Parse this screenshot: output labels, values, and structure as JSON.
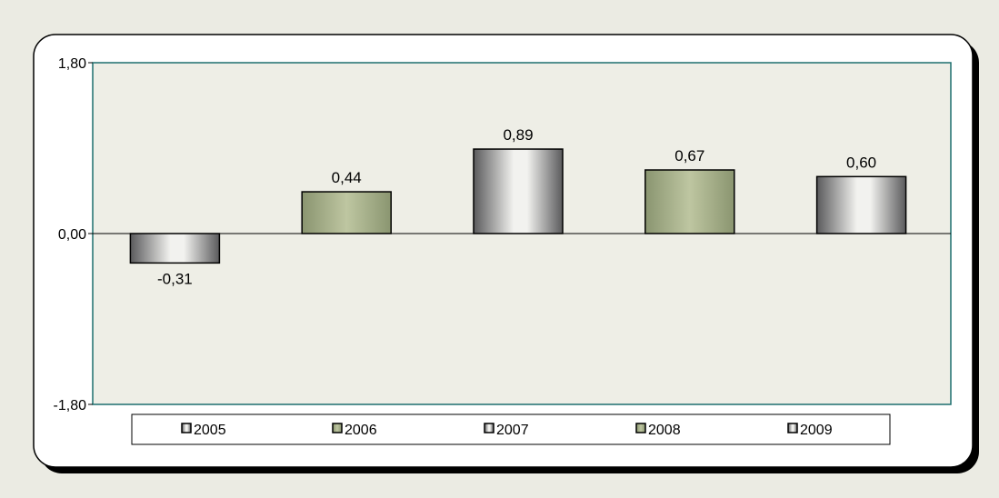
{
  "chart_data": {
    "type": "bar",
    "categories": [
      "2005",
      "2006",
      "2007",
      "2008",
      "2009"
    ],
    "values": [
      -0.31,
      0.44,
      0.89,
      0.67,
      0.6
    ],
    "value_labels": [
      "-0,31",
      "0,44",
      "0,89",
      "0,67",
      "0,60"
    ],
    "title": "",
    "xlabel": "",
    "ylabel": "",
    "ylim": [
      -1.8,
      1.8
    ],
    "yticks": [
      1.8,
      0.0,
      -1.8
    ],
    "ytick_labels": [
      "1,80",
      "0,00",
      "-1,80"
    ],
    "grid": false,
    "legend": {
      "placement": "bottom",
      "entries": [
        "2005",
        "2006",
        "2007",
        "2008",
        "2009"
      ]
    },
    "bar_styles": [
      "gray-cylinder",
      "green",
      "gray-cylinder",
      "green",
      "gray-cylinder"
    ]
  },
  "colors": {
    "page_background": "#ebebe3",
    "frame_background": "#ffffff",
    "plot_background": "#eeeee6",
    "plot_border": "#1d6e6e",
    "gray_bar_dark": "#58585a",
    "gray_bar_light": "#f1f1ee",
    "green_bar_dark": "#8d9870",
    "green_bar_light": "#bcc49f"
  }
}
